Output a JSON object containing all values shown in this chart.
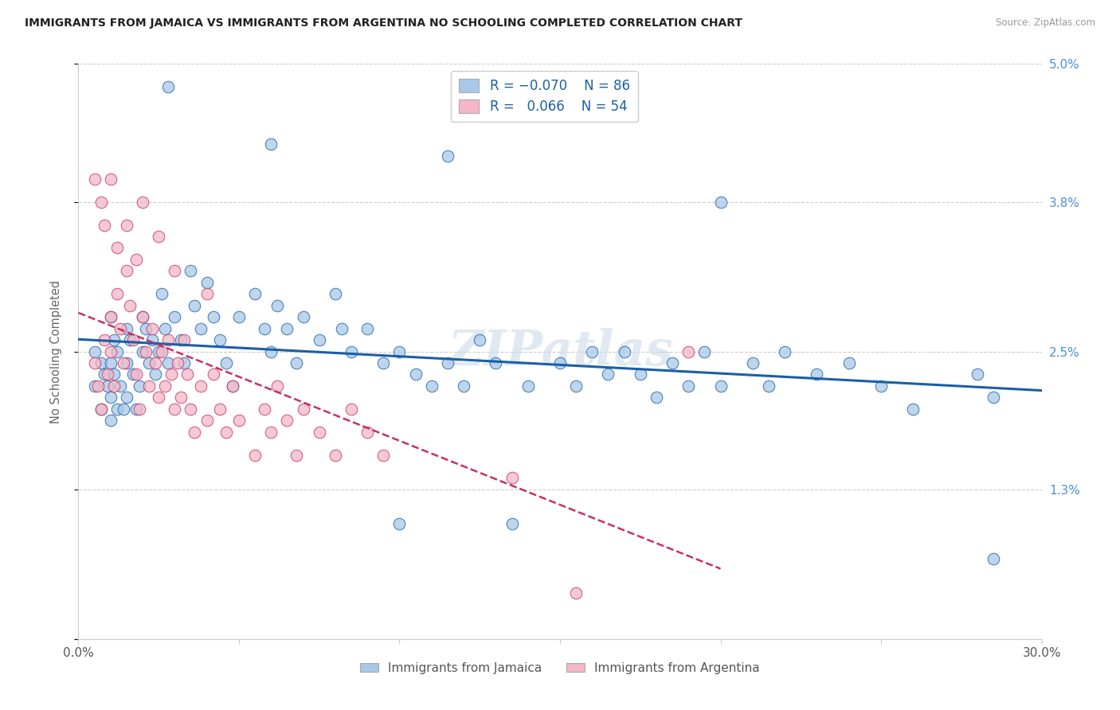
{
  "title": "IMMIGRANTS FROM JAMAICA VS IMMIGRANTS FROM ARGENTINA NO SCHOOLING COMPLETED CORRELATION CHART",
  "source": "Source: ZipAtlas.com",
  "ylabel": "No Schooling Completed",
  "xlim": [
    0.0,
    0.3
  ],
  "ylim": [
    0.0,
    0.05
  ],
  "xticks": [
    0.0,
    0.05,
    0.1,
    0.15,
    0.2,
    0.25,
    0.3
  ],
  "yticks": [
    0.0,
    0.013,
    0.025,
    0.038,
    0.05
  ],
  "ytick_labels": [
    "",
    "1.3%",
    "2.5%",
    "3.8%",
    "5.0%"
  ],
  "xtick_labels": [
    "0.0%",
    "",
    "",
    "",
    "",
    "",
    "30.0%"
  ],
  "color_jamaica": "#a8c8e8",
  "color_argentina": "#f4b8c8",
  "line_color_jamaica": "#1a5fa8",
  "line_color_argentina": "#c83060",
  "background_color": "#ffffff",
  "watermark": "ZIPatlas",
  "jamaica_x": [
    0.005,
    0.005,
    0.007,
    0.007,
    0.008,
    0.009,
    0.01,
    0.01,
    0.01,
    0.01,
    0.011,
    0.011,
    0.012,
    0.012,
    0.013,
    0.014,
    0.015,
    0.015,
    0.015,
    0.016,
    0.017,
    0.018,
    0.019,
    0.02,
    0.02,
    0.021,
    0.022,
    0.023,
    0.024,
    0.025,
    0.026,
    0.027,
    0.028,
    0.03,
    0.032,
    0.033,
    0.035,
    0.036,
    0.038,
    0.04,
    0.042,
    0.044,
    0.046,
    0.048,
    0.05,
    0.055,
    0.058,
    0.06,
    0.062,
    0.065,
    0.068,
    0.07,
    0.075,
    0.08,
    0.082,
    0.085,
    0.09,
    0.095,
    0.1,
    0.105,
    0.11,
    0.115,
    0.12,
    0.125,
    0.13,
    0.14,
    0.15,
    0.155,
    0.16,
    0.165,
    0.17,
    0.175,
    0.18,
    0.185,
    0.19,
    0.195,
    0.2,
    0.21,
    0.215,
    0.22,
    0.23,
    0.24,
    0.25,
    0.26,
    0.28,
    0.285
  ],
  "jamaica_y": [
    0.025,
    0.022,
    0.024,
    0.02,
    0.023,
    0.022,
    0.028,
    0.024,
    0.021,
    0.019,
    0.026,
    0.023,
    0.02,
    0.025,
    0.022,
    0.02,
    0.027,
    0.024,
    0.021,
    0.026,
    0.023,
    0.02,
    0.022,
    0.028,
    0.025,
    0.027,
    0.024,
    0.026,
    0.023,
    0.025,
    0.03,
    0.027,
    0.024,
    0.028,
    0.026,
    0.024,
    0.032,
    0.029,
    0.027,
    0.031,
    0.028,
    0.026,
    0.024,
    0.022,
    0.028,
    0.03,
    0.027,
    0.025,
    0.029,
    0.027,
    0.024,
    0.028,
    0.026,
    0.03,
    0.027,
    0.025,
    0.027,
    0.024,
    0.025,
    0.023,
    0.022,
    0.024,
    0.022,
    0.026,
    0.024,
    0.022,
    0.024,
    0.022,
    0.025,
    0.023,
    0.025,
    0.023,
    0.021,
    0.024,
    0.022,
    0.025,
    0.022,
    0.024,
    0.022,
    0.025,
    0.023,
    0.024,
    0.022,
    0.02,
    0.023,
    0.021
  ],
  "jamaica_y_outliers_x": [
    0.028,
    0.06,
    0.115,
    0.2,
    0.1,
    0.135,
    0.285
  ],
  "jamaica_y_outliers_y": [
    0.048,
    0.043,
    0.042,
    0.038,
    0.01,
    0.01,
    0.007
  ],
  "argentina_x": [
    0.005,
    0.006,
    0.007,
    0.008,
    0.009,
    0.01,
    0.01,
    0.011,
    0.012,
    0.013,
    0.014,
    0.015,
    0.016,
    0.017,
    0.018,
    0.019,
    0.02,
    0.021,
    0.022,
    0.023,
    0.024,
    0.025,
    0.026,
    0.027,
    0.028,
    0.029,
    0.03,
    0.031,
    0.032,
    0.033,
    0.034,
    0.035,
    0.036,
    0.038,
    0.04,
    0.042,
    0.044,
    0.046,
    0.048,
    0.05,
    0.055,
    0.058,
    0.06,
    0.062,
    0.065,
    0.068,
    0.07,
    0.075,
    0.08,
    0.085,
    0.09,
    0.095,
    0.135,
    0.19
  ],
  "argentina_y": [
    0.024,
    0.022,
    0.02,
    0.026,
    0.023,
    0.028,
    0.025,
    0.022,
    0.03,
    0.027,
    0.024,
    0.032,
    0.029,
    0.026,
    0.023,
    0.02,
    0.028,
    0.025,
    0.022,
    0.027,
    0.024,
    0.021,
    0.025,
    0.022,
    0.026,
    0.023,
    0.02,
    0.024,
    0.021,
    0.026,
    0.023,
    0.02,
    0.018,
    0.022,
    0.019,
    0.023,
    0.02,
    0.018,
    0.022,
    0.019,
    0.016,
    0.02,
    0.018,
    0.022,
    0.019,
    0.016,
    0.02,
    0.018,
    0.016,
    0.02,
    0.018,
    0.016,
    0.014,
    0.025
  ],
  "argentina_y_outliers_x": [
    0.005,
    0.007,
    0.008,
    0.01,
    0.012,
    0.015,
    0.018,
    0.02,
    0.025,
    0.03,
    0.04,
    0.155
  ],
  "argentina_y_outliers_y": [
    0.04,
    0.038,
    0.036,
    0.04,
    0.034,
    0.036,
    0.033,
    0.038,
    0.035,
    0.032,
    0.03,
    0.004
  ]
}
